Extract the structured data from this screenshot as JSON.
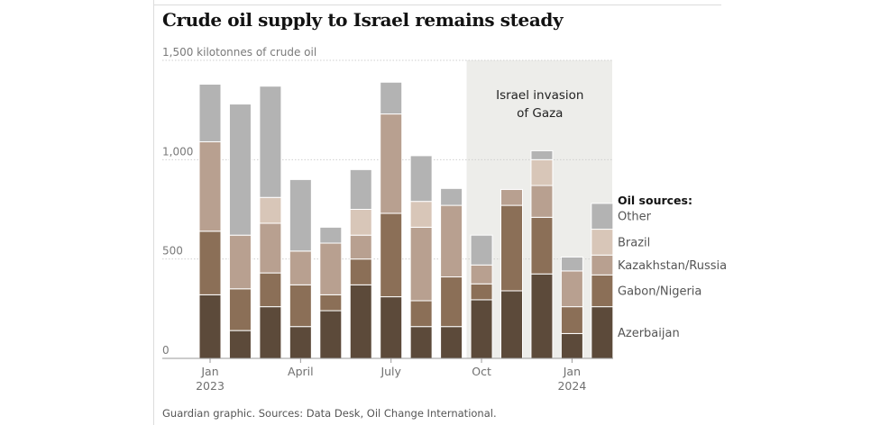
{
  "header": {
    "title": "Crude oil supply to Israel remains steady"
  },
  "footer": {
    "source": "Guardian graphic. Sources: Data Desk, Oil Change International."
  },
  "chart_data": {
    "type": "bar",
    "stacked": true,
    "title": "Crude oil supply to Israel remains steady",
    "unit_label": "1,500 kilotonnes of crude oil",
    "ylim": [
      0,
      1500
    ],
    "yticks": [
      {
        "value": 0,
        "label": "0"
      },
      {
        "value": 500,
        "label": "500"
      },
      {
        "value": 1000,
        "label": "1,000"
      },
      {
        "value": 1500,
        "label": "1,500 kilotonnes of crude oil"
      }
    ],
    "categories": [
      "Jan 2023",
      "Feb 2023",
      "Mar 2023",
      "Apr 2023",
      "May 2023",
      "Jun 2023",
      "Jul 2023",
      "Aug 2023",
      "Sep 2023",
      "Oct 2023",
      "Nov 2023",
      "Dec 2023",
      "Jan 2024",
      "Feb 2024"
    ],
    "x_tick_labels": [
      {
        "index": 0,
        "lines": [
          "Jan",
          "2023"
        ]
      },
      {
        "index": 3,
        "lines": [
          "April"
        ]
      },
      {
        "index": 6,
        "lines": [
          "July"
        ]
      },
      {
        "index": 9,
        "lines": [
          "Oct"
        ]
      },
      {
        "index": 12,
        "lines": [
          "Jan",
          "2024"
        ]
      }
    ],
    "legend_title": "Oil sources:",
    "legend_placement": "right",
    "series": [
      {
        "name": "Azerbaijan",
        "color": "#5c4a3a",
        "values": [
          320,
          140,
          260,
          160,
          240,
          370,
          310,
          160,
          160,
          295,
          340,
          425,
          125,
          260
        ]
      },
      {
        "name": "Gabon/Nigeria",
        "color": "#8b6f57",
        "values": [
          320,
          210,
          170,
          210,
          80,
          130,
          420,
          130,
          250,
          80,
          430,
          285,
          135,
          160
        ]
      },
      {
        "name": "Kazakhstan/Russia",
        "color": "#b8a090",
        "values": [
          450,
          270,
          250,
          170,
          260,
          120,
          500,
          370,
          360,
          95,
          80,
          160,
          180,
          100
        ]
      },
      {
        "name": "Brazil",
        "color": "#d8c6b8",
        "values": [
          0,
          0,
          130,
          0,
          0,
          130,
          0,
          130,
          0,
          0,
          0,
          130,
          0,
          130
        ]
      },
      {
        "name": "Other",
        "color": "#b3b3b3",
        "values": [
          290,
          660,
          560,
          360,
          80,
          200,
          160,
          230,
          85,
          150,
          0,
          45,
          70,
          130
        ]
      }
    ],
    "annotation": {
      "text_lines": [
        "Israel invasion",
        "of Gaza"
      ],
      "start_category": "Oct 2023",
      "end_category": "Dec 2023",
      "shade_color": "#ededE8"
    },
    "grid": true
  }
}
